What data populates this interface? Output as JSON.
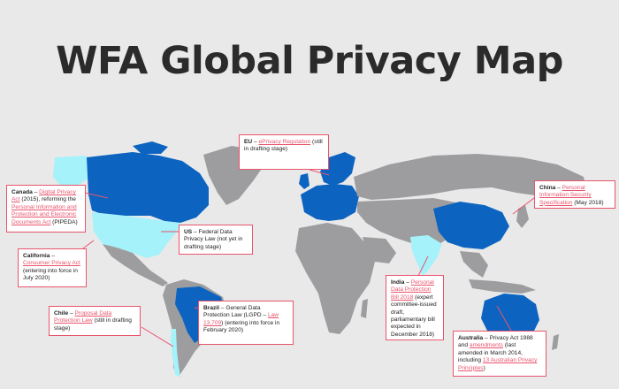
{
  "title": "WFA Global Privacy Map",
  "colors": {
    "background": "#e9e9ea",
    "land": "#9d9d9f",
    "law_in_force": "#0d64c0",
    "draft_or_partial": "#a5f2fa",
    "callout_border": "#e8546c",
    "link": "#e8546c"
  },
  "callouts": {
    "eu": {
      "region": "EU",
      "sep": " – ",
      "link": "ePrivacy Regulation",
      "rest": " (still in drafting stage)"
    },
    "canada": {
      "region": "Canada",
      "sep": " – ",
      "link": "Digital Privacy Act",
      "mid": " (2015), reforming the ",
      "link2": "Personal Information and Protection and Electronic Documents Act",
      "rest": " (PIPEDA)"
    },
    "us": {
      "region": "US",
      "sep": " – ",
      "rest": "Federal Data Privacy Law (not yet in drafting stage)"
    },
    "california": {
      "region": "California",
      "sep": " – ",
      "link": "Consumer Privacy Act",
      "rest": " (entering into force in July 2020)"
    },
    "china": {
      "region": "China",
      "sep": " – ",
      "link": "Personal Information Security Specification",
      "rest": " (May 2018)"
    },
    "india": {
      "region": "India",
      "sep": " – ",
      "link": "Personal Data Protection Bill 2018",
      "rest": " (expert committee-issued draft, parliamentary bill expected in December 2018)"
    },
    "brazil": {
      "region": "Brazil",
      "sep": " – ",
      "pre": "General Data Protection Law (LGPD – ",
      "link": "Law 13,709",
      "rest": ") (entering into force in February 2020)"
    },
    "chile": {
      "region": "Chile",
      "sep": " – ",
      "link": "Proposal Data Protection Law",
      "rest": " (still in drafting stage)"
    },
    "australia": {
      "region": "Australia",
      "sep": " – ",
      "pre": "Privacy Act 1988 and ",
      "link": "amendments",
      "mid": " (last amended in March 2014, including ",
      "link2": "13 Australian Privacy Principles",
      "rest": ")"
    }
  }
}
